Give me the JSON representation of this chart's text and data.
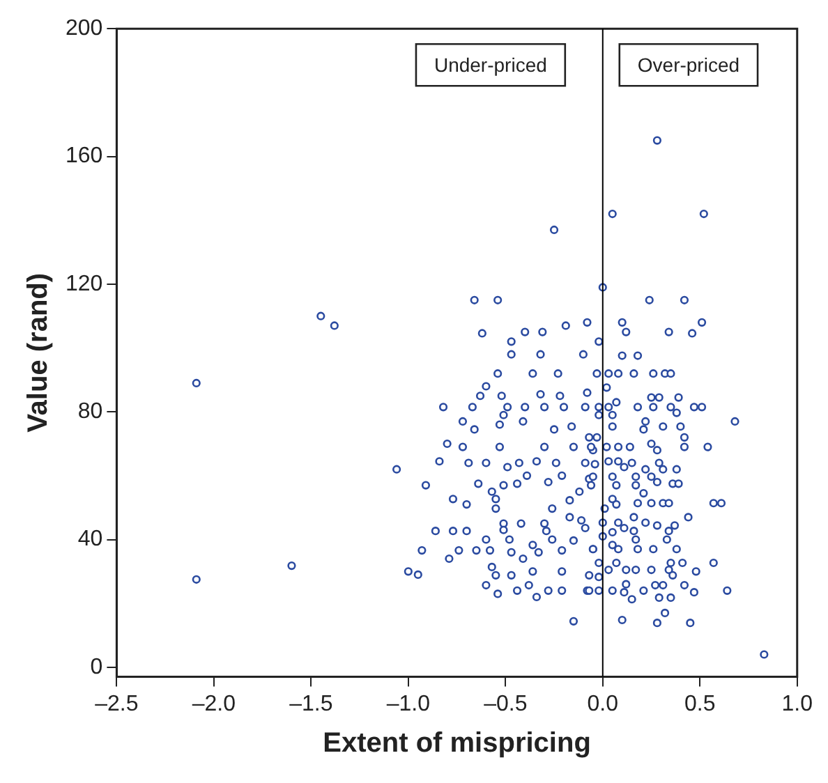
{
  "chart_data": {
    "type": "scatter",
    "xlabel": "Extent of mispricing",
    "ylabel": "Value (rand)",
    "xlim": [
      -2.5,
      1.0
    ],
    "ylim": [
      -3,
      200
    ],
    "xticks": [
      {
        "value": -2.5,
        "label": "–2.5"
      },
      {
        "value": -2.0,
        "label": "–2.0"
      },
      {
        "value": -1.5,
        "label": "–1.5"
      },
      {
        "value": -1.0,
        "label": "–1.0"
      },
      {
        "value": -0.5,
        "label": "–0.5"
      },
      {
        "value": 0,
        "label": "0.0"
      },
      0.5,
      {
        "value": 1.0,
        "label": "1.0"
      }
    ],
    "yticks": [
      0,
      40,
      80,
      120,
      160,
      200
    ],
    "grid": false,
    "legend": false,
    "marker": "circle",
    "ref_lines": [
      {
        "axis": "x",
        "value": 0,
        "color": "#000000"
      }
    ],
    "annotations": [
      "Under-priced",
      "Over-priced"
    ],
    "series": [
      {
        "color": "#2a4aa0",
        "x": [
          -2.09,
          -2.09,
          -1.6,
          -1.45,
          -1.38,
          -1.06,
          -0.25,
          0,
          0.05,
          0.28,
          0.52,
          0.83,
          0.68,
          -0.62,
          -0.47,
          -0.4,
          -0.31,
          -0.19,
          -0.08,
          -0.47,
          -0.32,
          -0.1,
          -0.54,
          -0.36,
          -0.23,
          -0.6,
          -0.63,
          -0.52,
          -0.82,
          -0.67,
          -0.49,
          -0.4,
          -0.3,
          -0.2,
          -0.09,
          -0.32,
          -0.22,
          -0.08,
          -0.51,
          -0.72,
          -0.66,
          -0.53,
          -0.41,
          -0.25,
          -0.16,
          -0.07,
          -0.8,
          -0.72,
          -0.53,
          -0.3,
          -0.15,
          -0.05,
          -0.84,
          -0.69,
          -0.6,
          -0.43,
          -0.34,
          -0.24,
          -0.09,
          -0.49,
          -0.39,
          -0.21,
          -0.07,
          -0.91,
          -0.64,
          -0.51,
          -0.44,
          -0.28,
          -0.57,
          -0.12,
          -0.77,
          -0.7,
          -0.55,
          -0.55,
          -0.26,
          -0.17,
          -0.17,
          -0.11,
          -0.51,
          -0.42,
          -0.3,
          -0.86,
          -0.77,
          -0.7,
          -0.51,
          -0.29,
          -0.09,
          -0.6,
          -0.48,
          -0.36,
          -0.26,
          -0.15,
          -0.93,
          -0.74,
          -0.65,
          -0.58,
          -0.47,
          -0.33,
          -0.21,
          -0.05,
          -0.79,
          -0.41,
          -1.0,
          -0.95,
          -0.57,
          -0.36,
          -0.21,
          -0.55,
          -0.47,
          -0.07,
          -0.6,
          -0.38,
          -0.54,
          -0.44,
          -0.34,
          -0.28,
          -0.21,
          -0.08,
          -0.15,
          -0.66,
          -0.54,
          0.24,
          0.42,
          0.1,
          0.51,
          0.12,
          0.34,
          0.46,
          -0.02,
          0.1,
          0.18,
          -0.03,
          0.03,
          0.08,
          0.16,
          0.26,
          0.32,
          0.35,
          0.02,
          0.25,
          0.29,
          0.39,
          0.07,
          -0.02,
          0.03,
          0.18,
          0.26,
          0.35,
          0.47,
          0.51,
          -0.02,
          0.05,
          0.38,
          0.22,
          0.05,
          0.21,
          0.31,
          0.4,
          0.42,
          -0.03,
          0.25,
          0.08,
          0.14,
          0.28,
          0.42,
          0.54,
          -0.06,
          0.02,
          0.03,
          0.08,
          0.15,
          0.29,
          -0.04,
          0.11,
          0.38,
          0.31,
          0.22,
          -0.05,
          0.05,
          0.17,
          0.25,
          0.07,
          0.17,
          0.28,
          0.36,
          0.39,
          -0.06,
          0.21,
          0.05,
          0.18,
          0.25,
          0.31,
          0.34,
          0.57,
          0.61,
          0.01,
          0.07,
          0.16,
          0.44,
          0,
          0.08,
          0.22,
          0.28,
          0.37,
          0.11,
          0.16,
          0.05,
          0.34,
          0,
          0.17,
          0.33,
          -0.05,
          0.05,
          0.08,
          0.18,
          0.26,
          0.38,
          -0.02,
          0.07,
          0.35,
          0.41,
          0.57,
          0.03,
          0.12,
          0.17,
          0.25,
          0.34,
          0.48,
          -0.02,
          0.36,
          0.12,
          0.27,
          0.31,
          0.42,
          -0.07,
          -0.02,
          0.05,
          0.11,
          0.21,
          0.29,
          0.35,
          0.47,
          0.64,
          0.15,
          0.32,
          0.1,
          0.28,
          0.45
        ],
        "values": [
          27.5,
          89,
          31.8,
          110,
          107,
          62,
          137,
          119,
          142,
          165,
          142,
          4,
          77,
          104.6,
          102,
          105,
          105,
          107,
          108,
          98,
          98,
          98,
          92,
          92,
          92,
          88,
          85,
          85,
          81.5,
          81.5,
          81.5,
          81.5,
          81.5,
          81.5,
          81.5,
          85.5,
          85,
          86,
          79,
          77,
          74.5,
          76,
          77,
          74.5,
          75.4,
          72,
          70,
          69,
          69,
          69,
          69,
          68,
          64.5,
          64,
          64,
          64,
          64.5,
          64,
          64,
          62.7,
          60,
          60,
          59,
          57,
          57.5,
          57,
          57.5,
          58,
          55,
          55,
          52.7,
          51,
          52.7,
          49.7,
          49.7,
          52.3,
          47,
          46,
          45,
          45,
          45,
          42.7,
          42.7,
          42.7,
          43,
          42.7,
          43.6,
          40,
          40,
          38.3,
          40,
          39.7,
          36.6,
          36.6,
          36.6,
          36.6,
          36,
          36,
          36.6,
          37,
          34,
          34,
          30,
          29,
          31.4,
          30,
          30,
          28.8,
          28.8,
          28.8,
          25.7,
          25.7,
          23,
          24,
          22,
          24,
          24,
          24,
          14.4,
          115,
          115,
          115,
          115,
          108,
          108,
          105,
          105,
          104.6,
          102,
          97.6,
          97.6,
          92,
          92,
          92,
          92,
          92,
          92,
          92,
          87.6,
          84.5,
          84.5,
          84.5,
          83,
          81.5,
          81.5,
          81.5,
          81.5,
          81.5,
          81.5,
          81.5,
          79,
          79,
          79.7,
          77,
          75.4,
          74.5,
          75.4,
          75.4,
          72,
          72,
          70,
          69,
          69,
          68,
          69,
          69,
          69,
          69,
          64.5,
          64.5,
          64,
          64,
          63.6,
          62.7,
          62,
          62,
          62,
          59.7,
          59.7,
          59.7,
          59.7,
          57,
          57,
          58,
          57.5,
          57.5,
          57,
          54.5,
          52.7,
          51.4,
          51.4,
          51.4,
          51.4,
          51.4,
          51.4,
          49.7,
          51,
          47,
          47,
          45.3,
          45.3,
          45.3,
          44.4,
          44.4,
          43.6,
          42.7,
          42.3,
          42.7,
          41,
          40,
          40,
          37,
          38.3,
          37,
          37,
          37,
          37,
          32.7,
          32.7,
          32.7,
          32.7,
          32.7,
          30.5,
          30.5,
          30.5,
          30.5,
          30.5,
          30,
          28.3,
          28.8,
          26,
          25.7,
          25.7,
          25.7,
          24,
          24,
          24,
          23.5,
          24,
          21.8,
          21.8,
          23.5,
          24,
          21.3,
          17,
          14.8,
          13.9,
          13.9
        ]
      }
    ]
  }
}
